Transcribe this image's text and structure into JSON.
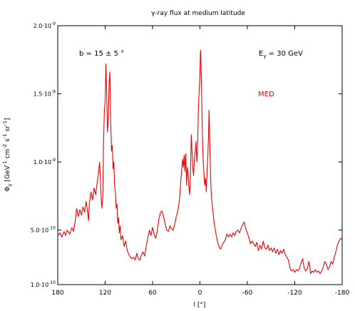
{
  "chart_data": {
    "type": "line",
    "title": "γ-ray flux at medium latitude",
    "xlabel": "l [°]",
    "ylabel": {
      "base": "Φ",
      "sub": "γ",
      "unit_open": " [GeV",
      "exp1": "-1",
      "mid": " cm",
      "exp2": "-2",
      "mid2": " s",
      "exp3": "-1",
      "mid3": " sr",
      "exp4": "-1",
      "close": "]"
    },
    "xlim": [
      180,
      -180
    ],
    "ylim": [
      1e-10,
      2e-09
    ],
    "grid": false,
    "x_ticks": [
      {
        "value": 180,
        "label": "180"
      },
      {
        "value": 120,
        "label": "120"
      },
      {
        "value": 60,
        "label": "60"
      },
      {
        "value": 0,
        "label": "0"
      },
      {
        "value": -60,
        "label": "-60"
      },
      {
        "value": -120,
        "label": "-120"
      },
      {
        "value": -180,
        "label": "-180"
      }
    ],
    "y_ticks": [
      {
        "value": 1e-10,
        "label": "1.0·10",
        "exp": "-10"
      },
      {
        "value": 5e-10,
        "label": "5.0·10",
        "exp": "-10"
      },
      {
        "value": 1e-09,
        "label": "1.0·10",
        "exp": "-9"
      },
      {
        "value": 1.5e-09,
        "label": "1.5·10",
        "exp": "-9"
      },
      {
        "value": 2e-09,
        "label": "2.0·10",
        "exp": "-9"
      }
    ],
    "annotations": {
      "latitude": "b = 15 ± 5 °",
      "energy_base": "E",
      "energy_sub": "γ",
      "energy_value": " = 30 GeV"
    },
    "series": [
      {
        "name": "MED",
        "color": "#ee0000",
        "points": [
          [
            180,
            4.6e-10
          ],
          [
            177,
            4.8e-10
          ],
          [
            175,
            4.5e-10
          ],
          [
            172,
            4.9e-10
          ],
          [
            170,
            4.6e-10
          ],
          [
            168,
            5e-10
          ],
          [
            165,
            4.7e-10
          ],
          [
            162,
            5.2e-10
          ],
          [
            160,
            4.9e-10
          ],
          [
            158,
            5.6e-10
          ],
          [
            156,
            6.6e-10
          ],
          [
            154,
            6e-10
          ],
          [
            152,
            6.5e-10
          ],
          [
            150,
            6.1e-10
          ],
          [
            148,
            6.7e-10
          ],
          [
            146,
            6.3e-10
          ],
          [
            144,
            7.1e-10
          ],
          [
            142,
            6.2e-10
          ],
          [
            141,
            5.7e-10
          ],
          [
            140,
            6.9e-10
          ],
          [
            138,
            7.8e-10
          ],
          [
            136,
            7.2e-10
          ],
          [
            134,
            8.1e-10
          ],
          [
            132,
            7.6e-10
          ],
          [
            130,
            8.5e-10
          ],
          [
            128,
            9.4e-10
          ],
          [
            127,
            1e-09
          ],
          [
            126,
            8.8e-10
          ],
          [
            125,
            7.2e-10
          ],
          [
            124,
            6.6e-10
          ],
          [
            123,
            7.5e-10
          ],
          [
            122,
            1.15e-09
          ],
          [
            121,
            1.38e-09
          ],
          [
            120,
            1.45e-09
          ],
          [
            119,
            1.72e-09
          ],
          [
            118,
            1.5e-09
          ],
          [
            117,
            1.22e-09
          ],
          [
            116,
            1.3e-09
          ],
          [
            115,
            1.58e-09
          ],
          [
            114,
            1.66e-09
          ],
          [
            113,
            1.3e-09
          ],
          [
            112,
            1.08e-09
          ],
          [
            111,
            1.12e-09
          ],
          [
            110,
            9.5e-10
          ],
          [
            109,
            1e-09
          ],
          [
            108,
            8.2e-10
          ],
          [
            107,
            7.7e-10
          ],
          [
            106,
            6.6e-10
          ],
          [
            105,
            6.9e-10
          ],
          [
            104,
            5.5e-10
          ],
          [
            103,
            5.9e-10
          ],
          [
            102,
            4.8e-10
          ],
          [
            101,
            5.3e-10
          ],
          [
            100,
            4.3e-10
          ],
          [
            98,
            4.6e-10
          ],
          [
            96,
            3.8e-10
          ],
          [
            94,
            4.2e-10
          ],
          [
            92,
            3.5e-10
          ],
          [
            90,
            3.2e-10
          ],
          [
            88,
            3e-10
          ],
          [
            86,
            2.9e-10
          ],
          [
            84,
            3e-10
          ],
          [
            82,
            2.8e-10
          ],
          [
            80,
            3.3e-10
          ],
          [
            78,
            2.9e-10
          ],
          [
            76,
            2.8e-10
          ],
          [
            74,
            3.2e-10
          ],
          [
            72,
            3.4e-10
          ],
          [
            70,
            3.1e-10
          ],
          [
            68,
            3.8e-10
          ],
          [
            66,
            4.4e-10
          ],
          [
            64,
            5e-10
          ],
          [
            62,
            4.6e-10
          ],
          [
            60,
            5.2e-10
          ],
          [
            58,
            4.7e-10
          ],
          [
            56,
            4.4e-10
          ],
          [
            54,
            4.9e-10
          ],
          [
            52,
            5.8e-10
          ],
          [
            50,
            6.3e-10
          ],
          [
            48,
            6.4e-10
          ],
          [
            46,
            6e-10
          ],
          [
            44,
            5.4e-10
          ],
          [
            42,
            5e-10
          ],
          [
            40,
            4.9e-10
          ],
          [
            38,
            5.3e-10
          ],
          [
            36,
            5.1e-10
          ],
          [
            34,
            5e-10
          ],
          [
            32,
            5.4e-10
          ],
          [
            30,
            6e-10
          ],
          [
            28,
            6.4e-10
          ],
          [
            26,
            7.2e-10
          ],
          [
            24,
            8.8e-10
          ],
          [
            22,
            1.02e-09
          ],
          [
            21,
            9.6e-10
          ],
          [
            20,
            1.05e-09
          ],
          [
            19,
            9.3e-10
          ],
          [
            18,
            1.06e-09
          ],
          [
            17,
            8.3e-10
          ],
          [
            16,
            9.6e-10
          ],
          [
            15,
            9.2e-10
          ],
          [
            14,
            8.1e-10
          ],
          [
            13,
            7.6e-10
          ],
          [
            12,
            8.9e-10
          ],
          [
            11,
            1.2e-09
          ],
          [
            10,
            1.08e-09
          ],
          [
            9,
            9.5e-10
          ],
          [
            8,
            9e-10
          ],
          [
            7,
            1.02e-09
          ],
          [
            6,
            1.08e-09
          ],
          [
            5,
            1.15e-09
          ],
          [
            4,
            1e-09
          ],
          [
            3,
            1.12e-09
          ],
          [
            2,
            1.38e-09
          ],
          [
            1,
            1.52e-09
          ],
          [
            0,
            1.65e-09
          ],
          [
            -0.5,
            1.8e-09
          ],
          [
            -1,
            1.82e-09
          ],
          [
            -2,
            1.55e-09
          ],
          [
            -3,
            1.22e-09
          ],
          [
            -4,
            1.02e-09
          ],
          [
            -5,
            9.2e-10
          ],
          [
            -6,
            8.3e-10
          ],
          [
            -7,
            8.8e-10
          ],
          [
            -8,
            7.8e-10
          ],
          [
            -9,
            9.3e-10
          ],
          [
            -10,
            1.05e-09
          ],
          [
            -11,
            1.22e-09
          ],
          [
            -11.5,
            1.38e-09
          ],
          [
            -12,
            1.26e-09
          ],
          [
            -13,
            1e-09
          ],
          [
            -14,
            8e-10
          ],
          [
            -15,
            7.2e-10
          ],
          [
            -16,
            6.6e-10
          ],
          [
            -17,
            6.1e-10
          ],
          [
            -18,
            5.5e-10
          ],
          [
            -20,
            4.8e-10
          ],
          [
            -22,
            4.2e-10
          ],
          [
            -24,
            3.8e-10
          ],
          [
            -26,
            3.6e-10
          ],
          [
            -28,
            3.9e-10
          ],
          [
            -30,
            4.1e-10
          ],
          [
            -32,
            4.3e-10
          ],
          [
            -34,
            4.7e-10
          ],
          [
            -36,
            4.5e-10
          ],
          [
            -38,
            4.7e-10
          ],
          [
            -40,
            4.5e-10
          ],
          [
            -42,
            4.8e-10
          ],
          [
            -44,
            4.6e-10
          ],
          [
            -46,
            4.9e-10
          ],
          [
            -48,
            5e-10
          ],
          [
            -50,
            4.8e-10
          ],
          [
            -52,
            5.1e-10
          ],
          [
            -54,
            5.4e-10
          ],
          [
            -56,
            5.6e-10
          ],
          [
            -58,
            5.1e-10
          ],
          [
            -60,
            4.8e-10
          ],
          [
            -62,
            4.4e-10
          ],
          [
            -64,
            4e-10
          ],
          [
            -66,
            4.2e-10
          ],
          [
            -68,
            4e-10
          ],
          [
            -70,
            3.8e-10
          ],
          [
            -72,
            4.1e-10
          ],
          [
            -74,
            3.5e-10
          ],
          [
            -76,
            3.9e-10
          ],
          [
            -78,
            3.6e-10
          ],
          [
            -80,
            4.2e-10
          ],
          [
            -82,
            3.7e-10
          ],
          [
            -84,
            3.6e-10
          ],
          [
            -86,
            3.9e-10
          ],
          [
            -88,
            3.5e-10
          ],
          [
            -90,
            3.7e-10
          ],
          [
            -92,
            3.4e-10
          ],
          [
            -94,
            3.7e-10
          ],
          [
            -96,
            3.3e-10
          ],
          [
            -98,
            3.6e-10
          ],
          [
            -100,
            3.2e-10
          ],
          [
            -102,
            3.5e-10
          ],
          [
            -104,
            3.3e-10
          ],
          [
            -106,
            3.6e-10
          ],
          [
            -108,
            3.2e-10
          ],
          [
            -110,
            3e-10
          ],
          [
            -112,
            2.8e-10
          ],
          [
            -114,
            2.2e-10
          ],
          [
            -116,
            2e-10
          ],
          [
            -118,
            2.1e-10
          ],
          [
            -120,
            1.9e-10
          ],
          [
            -122,
            2.1e-10
          ],
          [
            -124,
            2e-10
          ],
          [
            -126,
            2.2e-10
          ],
          [
            -128,
            2.6e-10
          ],
          [
            -130,
            2.9e-10
          ],
          [
            -131,
            2.5e-10
          ],
          [
            -132,
            2.2e-10
          ],
          [
            -134,
            2e-10
          ],
          [
            -136,
            2.2e-10
          ],
          [
            -138,
            2.7e-10
          ],
          [
            -139,
            2.3e-10
          ],
          [
            -140,
            1.8e-10
          ],
          [
            -142,
            2e-10
          ],
          [
            -144,
            1.9e-10
          ],
          [
            -146,
            2.1e-10
          ],
          [
            -148,
            1.9e-10
          ],
          [
            -150,
            2e-10
          ],
          [
            -152,
            1.8e-10
          ],
          [
            -154,
            2e-10
          ],
          [
            -156,
            2.3e-10
          ],
          [
            -158,
            2.7e-10
          ],
          [
            -160,
            2.5e-10
          ],
          [
            -162,
            2.1e-10
          ],
          [
            -164,
            2.3e-10
          ],
          [
            -166,
            2.7e-10
          ],
          [
            -168,
            2.5e-10
          ],
          [
            -170,
            3e-10
          ],
          [
            -172,
            3.4e-10
          ],
          [
            -174,
            3.9e-10
          ],
          [
            -176,
            4.2e-10
          ],
          [
            -178,
            4.4e-10
          ],
          [
            -180,
            4.3e-10
          ]
        ]
      }
    ]
  }
}
